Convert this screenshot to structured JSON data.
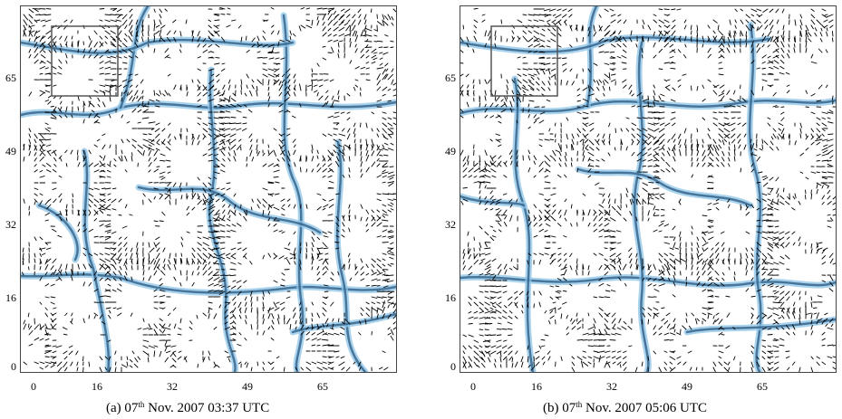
{
  "figure": {
    "panels": [
      {
        "id": "a",
        "caption_prefix": "(a) 07",
        "caption_sup": "th",
        "caption_rest": " Nov. 2007 03:37 UTC"
      },
      {
        "id": "b",
        "caption_prefix": "(b) 07",
        "caption_sup": "th",
        "caption_rest": " Nov. 2007 05:06 UTC"
      }
    ],
    "x_ticks": [
      "0",
      "16",
      "32",
      "49",
      "65"
    ],
    "y_ticks": [
      "65",
      "49",
      "32",
      "16",
      "0"
    ],
    "colors": {
      "arrows": "#000000",
      "network_light": "#8ec4e8",
      "network_dark": "#2f5f86",
      "frame": "#444444"
    }
  }
}
